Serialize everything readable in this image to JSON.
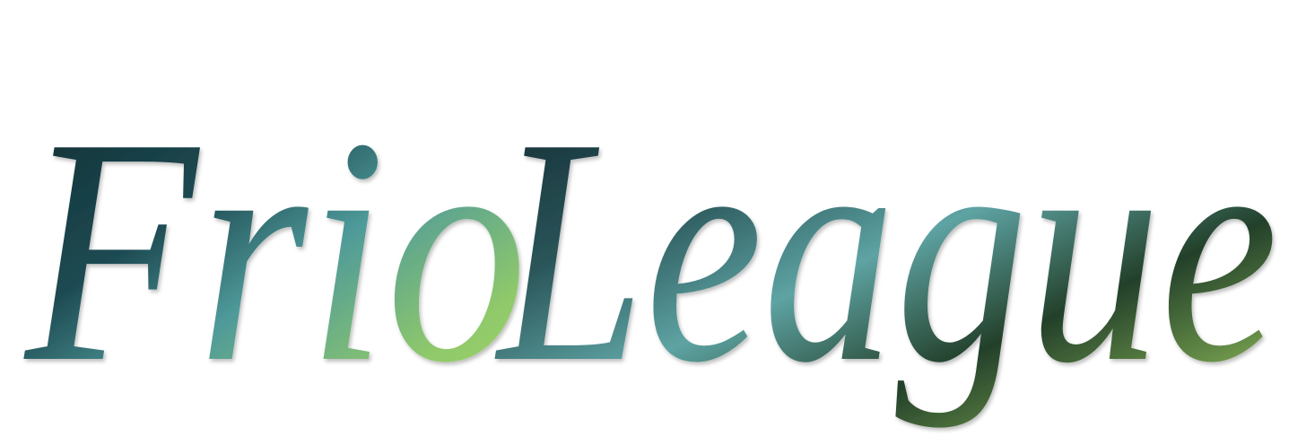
{
  "logo": {
    "words": [
      "Frio",
      "League"
    ]
  }
}
